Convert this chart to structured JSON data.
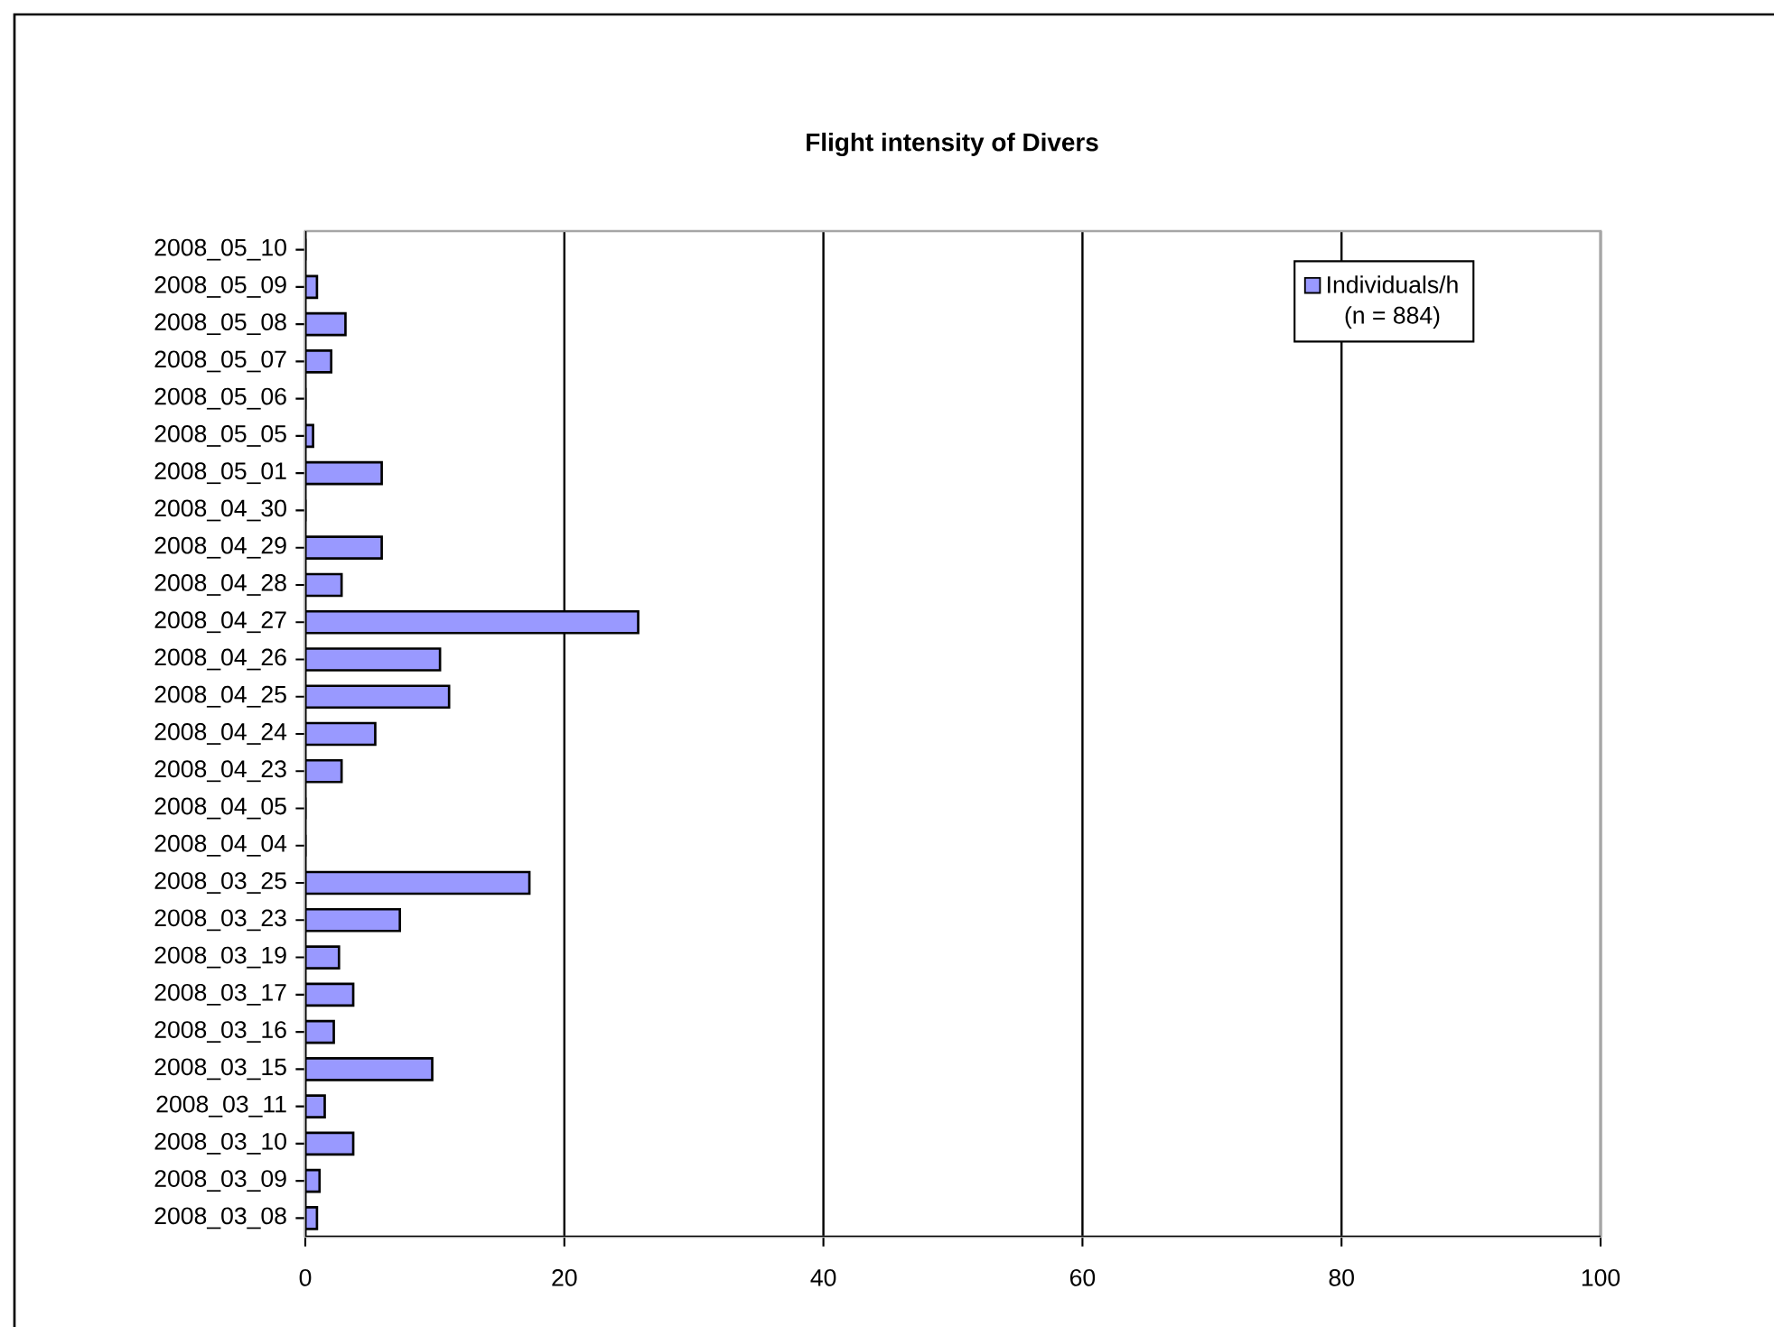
{
  "chart_data": {
    "type": "bar",
    "orientation": "horizontal",
    "title": "Flight intensity of Divers",
    "categories": [
      "2008_05_10",
      "2008_05_09",
      "2008_05_08",
      "2008_05_07",
      "2008_05_06",
      "2008_05_05",
      "2008_05_01",
      "2008_04_30",
      "2008_04_29",
      "2008_04_28",
      "2008_04_27",
      "2008_04_26",
      "2008_04_25",
      "2008_04_24",
      "2008_04_23",
      "2008_04_05",
      "2008_04_04",
      "2008_03_25",
      "2008_03_23",
      "2008_03_19",
      "2008_03_17",
      "2008_03_16",
      "2008_03_15",
      "2008_03_11",
      "2008_03_10",
      "2008_03_09",
      "2008_03_08"
    ],
    "series": [
      {
        "name": "Individuals/h",
        "color": "#9999ff",
        "values": [
          0,
          0.9,
          3.1,
          2,
          0,
          0.6,
          5.9,
          0,
          5.9,
          2.8,
          25.7,
          10.4,
          11.1,
          5.4,
          2.8,
          0,
          0,
          17.3,
          7.3,
          2.6,
          3.7,
          2.2,
          9.8,
          1.5,
          3.7,
          1.1,
          0.9
        ]
      }
    ],
    "xlim": [
      0,
      100
    ],
    "xticks": [
      0,
      20,
      40,
      60,
      80,
      100
    ],
    "grid": "x",
    "legend": "top right",
    "annotations": [
      "(n = 884)"
    ]
  }
}
